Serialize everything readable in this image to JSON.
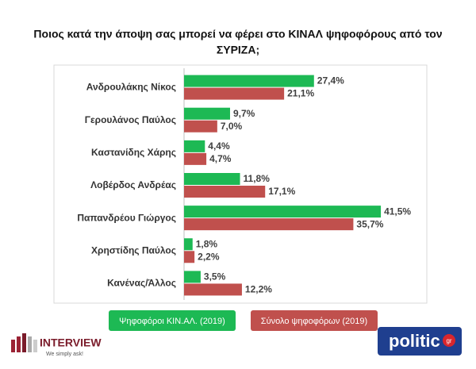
{
  "chart_data": {
    "type": "hbar",
    "title": [
      "Ποιος κατά την άποψη σας μπορεί να φέρει στο ΚΙΝΑΛ ψηφοφόρους από τον",
      "ΣΥΡΙΖΑ;"
    ],
    "categories": [
      "Ανδρουλάκης Νίκος",
      "Γερουλάνος Παύλος",
      "Καστανίδης Χάρης",
      "Λοβέρδος Ανδρέας",
      "Παπανδρέου Γιώργος",
      "Χρηστίδης Παύλος",
      "Κανένας/Άλλος"
    ],
    "series": [
      {
        "name": "Ψηφοφόροι ΚΙΝ.ΑΛ. (2019)",
        "color": "#1db954",
        "values": [
          27.4,
          9.7,
          4.4,
          11.8,
          41.5,
          1.8,
          3.5
        ],
        "value_labels": [
          "27,4%",
          "9,7%",
          "4,4%",
          "11,8%",
          "41,5%",
          "1,8%",
          "3,5%"
        ]
      },
      {
        "name": "Σύνολο ψηφοφόρων (2019)",
        "color": "#c0504d",
        "values": [
          21.1,
          7.0,
          4.7,
          17.1,
          35.7,
          2.2,
          12.2
        ],
        "value_labels": [
          "21,1%",
          "7,0%",
          "4,7%",
          "17,1%",
          "35,7%",
          "2,2%",
          "12,2%"
        ]
      }
    ],
    "xlim": [
      0,
      45
    ]
  },
  "logos": {
    "interview": "INTERVIEW",
    "interview_tagline": "We simply ask!",
    "politic": "politic",
    "politic_suffix": "gr"
  }
}
